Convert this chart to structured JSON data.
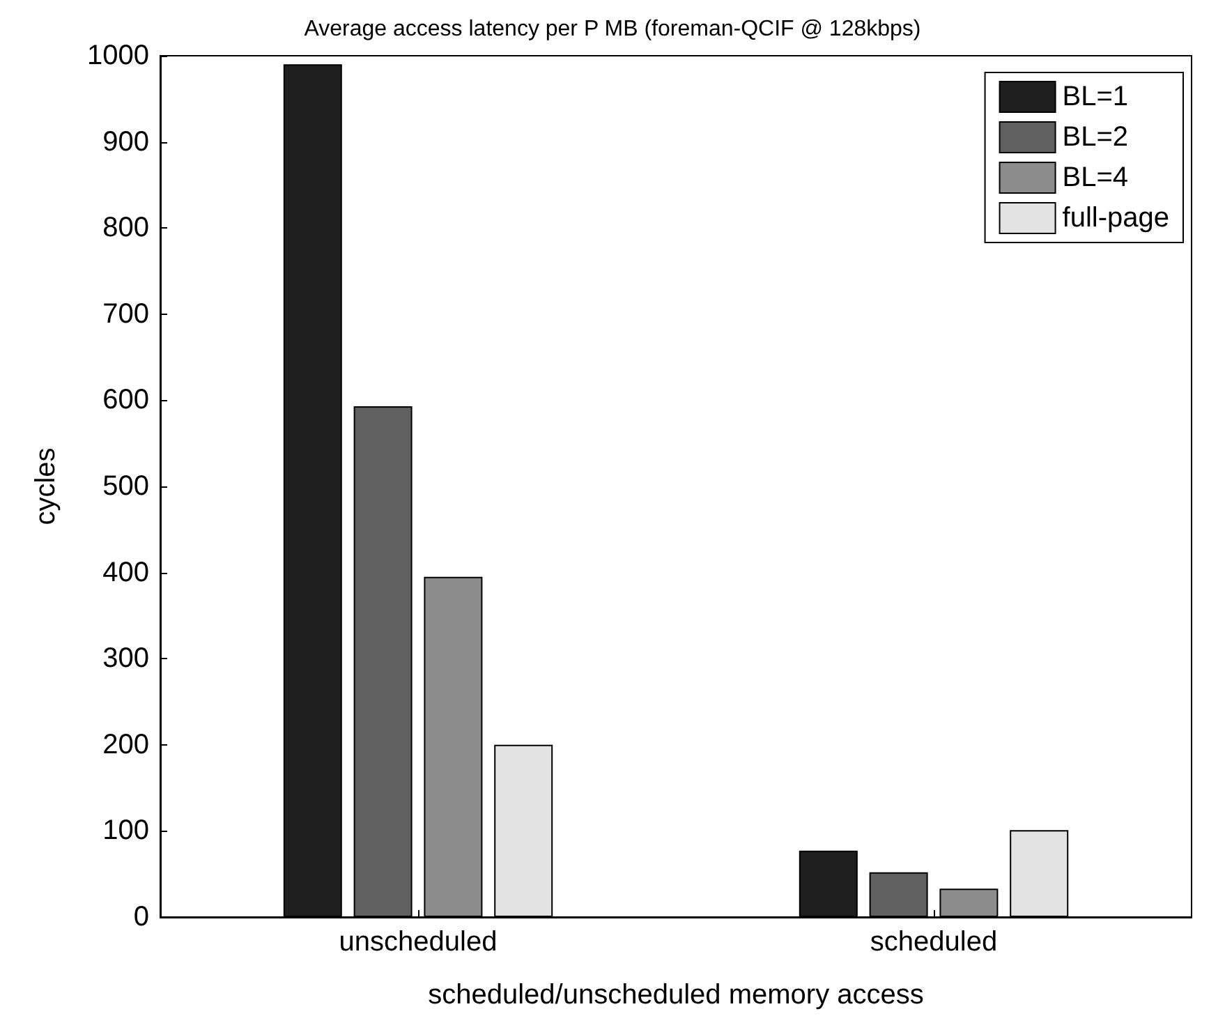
{
  "chart_data": {
    "type": "bar",
    "title": "Average access latency per P MB (foreman-QCIF @ 128kbps)",
    "xlabel": "scheduled/unscheduled memory access",
    "ylabel": "cycles",
    "categories": [
      "unscheduled",
      "scheduled"
    ],
    "series": [
      {
        "name": "BL=1",
        "color": "#1f1f1f",
        "values": [
          990,
          77
        ]
      },
      {
        "name": "BL=2",
        "color": "#606060",
        "values": [
          593,
          52
        ]
      },
      {
        "name": "BL=4",
        "color": "#8c8c8c",
        "values": [
          395,
          33
        ]
      },
      {
        "name": "full-page",
        "color": "#e3e3e3",
        "values": [
          200,
          101
        ]
      }
    ],
    "ylim": [
      0,
      1000
    ],
    "yticks": [
      0,
      100,
      200,
      300,
      400,
      500,
      600,
      700,
      800,
      900,
      1000
    ],
    "grid": false,
    "legend": "top right"
  }
}
